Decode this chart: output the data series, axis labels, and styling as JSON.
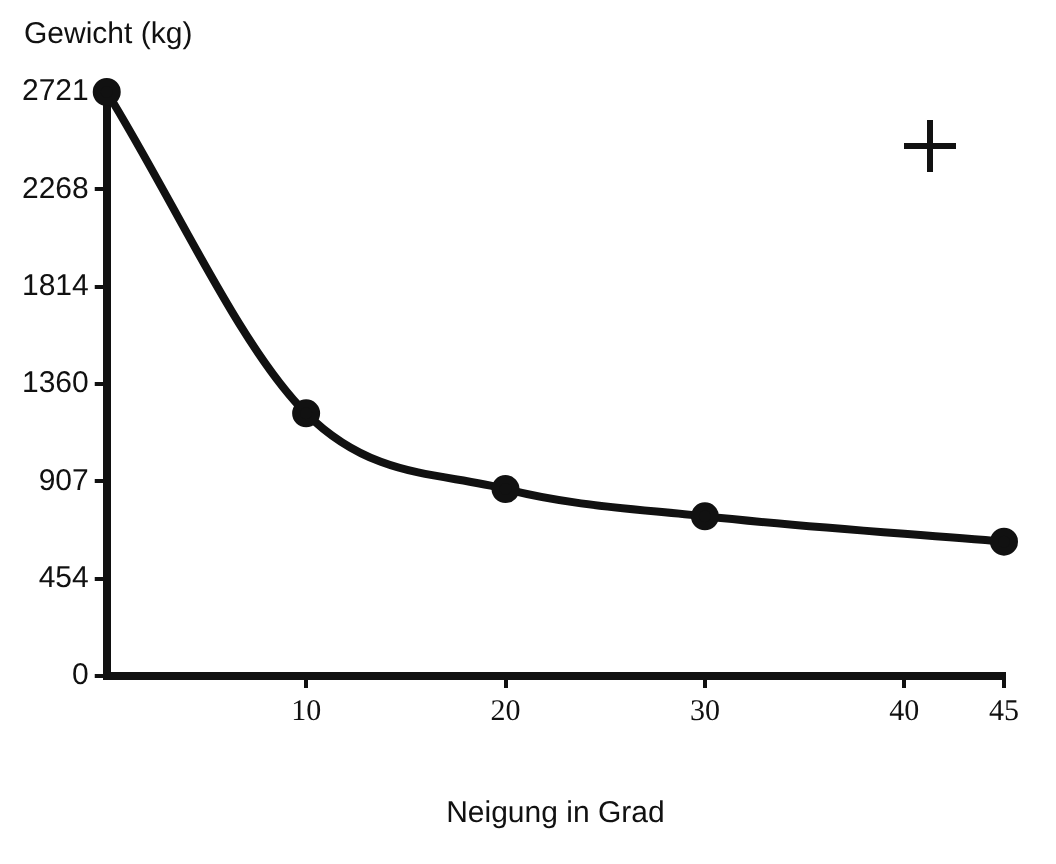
{
  "chart_data": {
    "type": "line",
    "xlabel": "Neigung in Grad",
    "ylabel": "Gewicht (kg)",
    "x": [
      0,
      10,
      20,
      30,
      45
    ],
    "values": [
      2721,
      1224,
      871,
      744,
      626
    ],
    "color": "#111111",
    "marker": "circle",
    "line_style": "solid",
    "grid": false,
    "legend": false,
    "xlim": [
      0,
      45
    ],
    "xticks": [
      10,
      20,
      30,
      40,
      45
    ],
    "ylim": [
      0,
      2721
    ],
    "yticks": [
      0,
      454,
      907,
      1360,
      1814,
      2268,
      2721
    ]
  }
}
